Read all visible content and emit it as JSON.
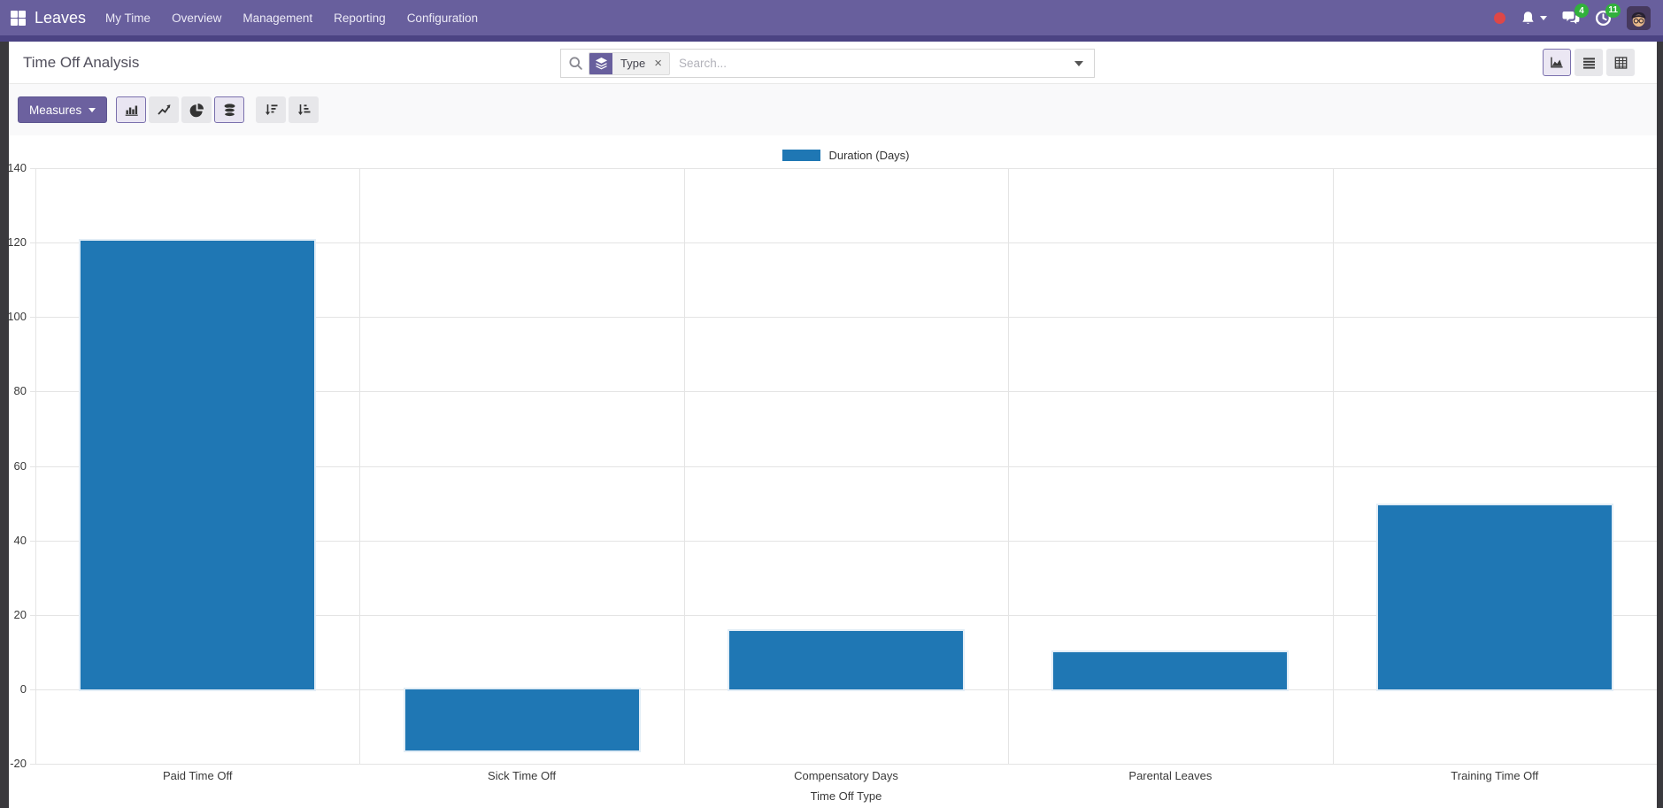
{
  "navbar": {
    "brand": "Leaves",
    "menu_items": [
      "My Time",
      "Overview",
      "Management",
      "Reporting",
      "Configuration"
    ],
    "chat_badge": "4",
    "activity_badge": "11"
  },
  "control_panel": {
    "title": "Time Off Analysis",
    "search": {
      "facet_label": "Type",
      "facet_close": "×",
      "placeholder": "Search..."
    },
    "measures_label": "Measures"
  },
  "icons": {
    "apps": "grid-2x2",
    "status": "red-dot",
    "notifications": "bell",
    "messages": "chat-bubbles",
    "activities": "clock",
    "search": "magnifier",
    "facet_category": "layers",
    "chart_bar": "bar-chart",
    "chart_line": "line-chart",
    "chart_pie": "pie-chart",
    "chart_stacked": "database-stack",
    "sort_desc": "sort-amount-desc",
    "sort_asc": "sort-amount-asc",
    "view_graph": "area-chart",
    "view_list": "list-lines",
    "view_pivot": "table-grid"
  },
  "colors": {
    "navbar": "#685f9d",
    "navbar_strip": "#4b4383",
    "bar_series": "#1f77b4",
    "badge_green": "#31b13c",
    "status_red": "#de4747"
  },
  "chart_data": {
    "type": "bar",
    "title": "",
    "categories": [
      "Paid Time Off",
      "Sick Time Off",
      "Compensatory Days",
      "Parental Leaves",
      "Training Time Off"
    ],
    "series": [
      {
        "name": "Duration (Days)",
        "values": [
          120.5,
          -16.5,
          15.75,
          10,
          49.5
        ],
        "color": "#1f77b4"
      }
    ],
    "xlabel": "Time Off Type",
    "ylabel": "",
    "ylim": [
      -20,
      140
    ],
    "ytick_step": 20,
    "grid": true,
    "legend_position": "top-center"
  }
}
